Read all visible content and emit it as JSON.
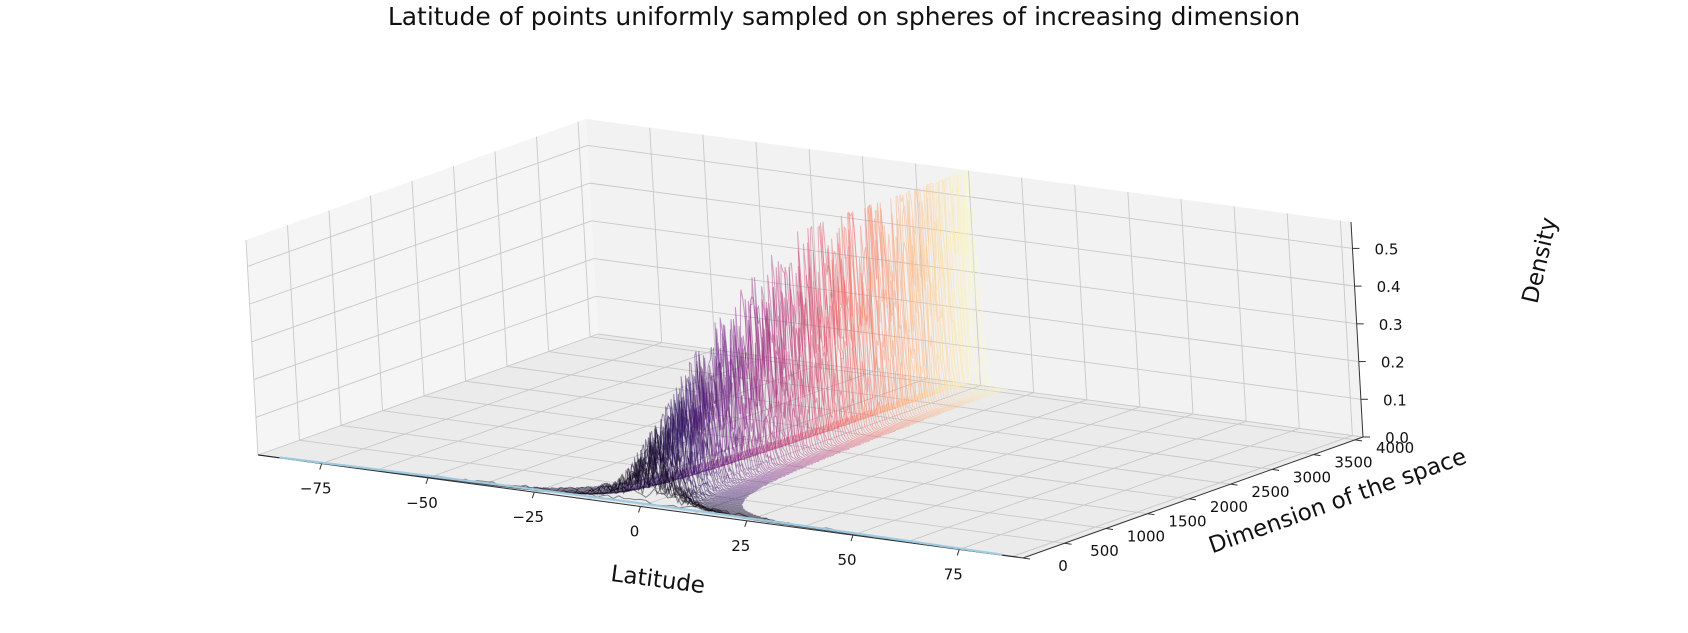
{
  "chart_data": {
    "type": "line",
    "projection": "3d-ridgeline",
    "title": "Latitude of points uniformly sampled on spheres of increasing dimension",
    "xlabel": "Latitude",
    "ylabel": "Dimension of the space",
    "zlabel": "Density",
    "xlim": [
      -90,
      90
    ],
    "ylim": [
      0,
      4096
    ],
    "zlim": [
      0,
      0.57
    ],
    "xticks": [
      "−75",
      "−50",
      "−25",
      "0",
      "25",
      "50",
      "75"
    ],
    "xtick_values": [
      -75,
      -50,
      -25,
      0,
      25,
      50,
      75
    ],
    "yticks": [
      "0",
      "500",
      "1000",
      "1500",
      "2000",
      "2500",
      "3000",
      "3500",
      "4000"
    ],
    "ytick_values": [
      0,
      500,
      1000,
      1500,
      2000,
      2500,
      3000,
      3500,
      4000
    ],
    "zticks": [
      "0.0",
      "0.1",
      "0.2",
      "0.3",
      "0.4",
      "0.5"
    ],
    "ztick_values": [
      0,
      0.1,
      0.2,
      0.3,
      0.4,
      0.5
    ],
    "grid": true,
    "colormap": "magma",
    "colormap_stops": [
      "#000004",
      "#2c115f",
      "#721f81",
      "#b73779",
      "#f1605d",
      "#feb078",
      "#fcfdbf"
    ],
    "series_description": "one latitude-density histogram per dimension, dimensions from 3 to 4096",
    "dimension_range": [
      3,
      4096
    ],
    "peak_density_approx": 0.57,
    "low_dimension_density_approx": 0.008,
    "low_dimension_color": "#9ecae1"
  }
}
